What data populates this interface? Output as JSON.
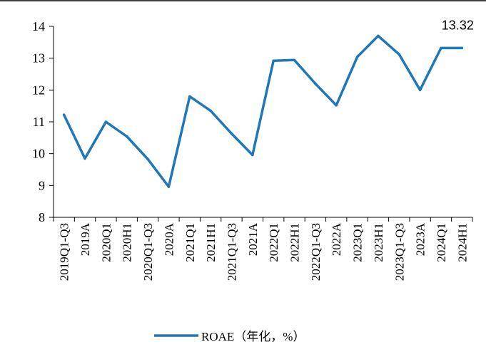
{
  "chart_data": {
    "type": "line",
    "categories": [
      "2019Q1-Q3",
      "2019A",
      "2020Q1",
      "2020H1",
      "2020Q1-Q3",
      "2020A",
      "2021Q1",
      "2021H1",
      "2021Q1-Q3",
      "2021A",
      "2022Q1",
      "2022H1",
      "2022Q1-Q3",
      "2022A",
      "2023Q1",
      "2023H1",
      "2023Q1-Q3",
      "2023A",
      "2024Q1",
      "2024H1"
    ],
    "series": [
      {
        "name": "ROAE（年化，%）",
        "color": "#1F77B8",
        "values": [
          11.22,
          9.85,
          11.0,
          10.54,
          9.83,
          8.96,
          11.8,
          11.35,
          10.63,
          9.96,
          12.92,
          12.94,
          12.2,
          11.52,
          13.04,
          13.7,
          13.12,
          12.0,
          13.32,
          13.32
        ]
      }
    ],
    "yticks": [
      8,
      9,
      10,
      11,
      12,
      13,
      14
    ],
    "ylim": [
      8,
      14
    ],
    "annotation": {
      "text": "13.32",
      "index": 19
    },
    "grid": false,
    "legend": "bottom"
  }
}
